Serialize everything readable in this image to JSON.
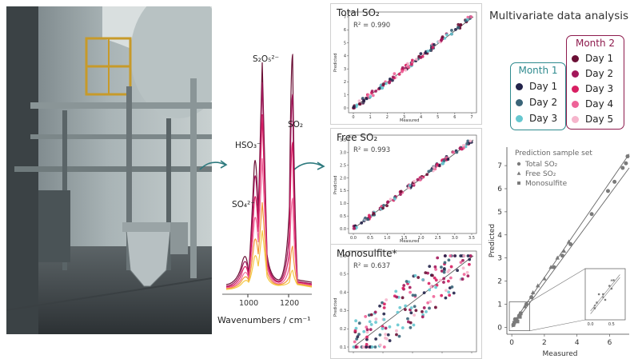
{
  "spectra": {
    "labels": {
      "s2o5": "S₂O₅²⁻",
      "hso3": "HSO₃⁻",
      "so2": "SO₂",
      "so4": "SO₄²⁻"
    },
    "axis_title": "Wavenumbers / cm⁻¹",
    "ticks": [
      "1000",
      "1200"
    ]
  },
  "panels": [
    {
      "title": "Total SO₂",
      "r2": "R² = 0.990",
      "xlabel": "Measured",
      "ylabel": "Predicted",
      "xticks": [
        "0",
        "1",
        "2",
        "3",
        "4",
        "5",
        "6",
        "7"
      ],
      "yticks": [
        "0",
        "1",
        "2",
        "3",
        "4",
        "5",
        "6",
        "7"
      ]
    },
    {
      "title": "Free SO₂",
      "r2": "R² = 0.993",
      "xlabel": "Measured",
      "ylabel": "Predicted",
      "xticks": [
        "0.0",
        "0.5",
        "1.0",
        "1.5",
        "2.0",
        "2.5",
        "3.0",
        "3.5"
      ],
      "yticks": [
        "0.0",
        "0.5",
        "1.0",
        "1.5",
        "2.0",
        "2.5",
        "3.0",
        "3.5"
      ]
    },
    {
      "title": "Monosulfite*",
      "r2": "R² = 0.637",
      "xlabel": "Measured",
      "ylabel": "Predicted",
      "xticks": [
        "0.1",
        "0.2",
        "0.3",
        "0.4",
        "0.5"
      ],
      "yticks": [
        "0.1",
        "0.2",
        "0.3",
        "0.4",
        "0.5",
        "0.6"
      ]
    }
  ],
  "analysis": {
    "heading": "Multivariate data analysis",
    "month1": {
      "title": "Month 1",
      "color": "#2e8a8e",
      "items": [
        {
          "label": "Day 1",
          "color": "#23234a"
        },
        {
          "label": "Day 2",
          "color": "#3a6478"
        },
        {
          "label": "Day 3",
          "color": "#66c7cf"
        }
      ]
    },
    "month2": {
      "title": "Month 2",
      "color": "#8e1b4d",
      "items": [
        {
          "label": "Day 1",
          "color": "#6b0f35"
        },
        {
          "label": "Day 2",
          "color": "#a3175a"
        },
        {
          "label": "Day 3",
          "color": "#d81f62"
        },
        {
          "label": "Day 4",
          "color": "#ee6398"
        },
        {
          "label": "Day 5",
          "color": "#f6b5cc"
        }
      ]
    }
  },
  "chart_data": {
    "type": "scatter",
    "title": "Prediction sample set",
    "xlabel": "Measured",
    "ylabel": "Predicted",
    "xticks": [
      "0",
      "2",
      "4",
      "6"
    ],
    "yticks": [
      "0",
      "1",
      "2",
      "3",
      "4",
      "5",
      "6",
      "7"
    ],
    "inset_xticks": [
      "0.0",
      "0.5"
    ],
    "xlim": [
      -0.3,
      7.2
    ],
    "ylim": [
      -0.3,
      7.8
    ],
    "series": [
      {
        "name": "Total SO₂",
        "marker": "circle",
        "points": [
          [
            0.1,
            0.1
          ],
          [
            0.2,
            0.35
          ],
          [
            0.45,
            0.5
          ],
          [
            0.9,
            1.0
          ],
          [
            1.2,
            1.3
          ],
          [
            2.6,
            2.6
          ],
          [
            3.1,
            3.1
          ],
          [
            3.6,
            3.6
          ],
          [
            4.9,
            4.9
          ],
          [
            5.9,
            5.9
          ],
          [
            6.3,
            6.3
          ],
          [
            6.8,
            6.9
          ],
          [
            7.0,
            7.1
          ],
          [
            7.1,
            7.4
          ]
        ]
      },
      {
        "name": "Free SO₂",
        "marker": "triangle",
        "points": [
          [
            0.1,
            0.15
          ],
          [
            0.3,
            0.3
          ],
          [
            0.5,
            0.6
          ],
          [
            0.8,
            0.9
          ],
          [
            1.3,
            1.5
          ],
          [
            1.6,
            1.8
          ],
          [
            2.0,
            2.1
          ],
          [
            2.4,
            2.6
          ],
          [
            2.8,
            3.0
          ],
          [
            3.2,
            3.3
          ],
          [
            3.5,
            3.7
          ]
        ]
      },
      {
        "name": "Monosulfite",
        "marker": "square",
        "points": [
          [
            0.1,
            0.1
          ],
          [
            0.15,
            0.2
          ],
          [
            0.3,
            0.35
          ],
          [
            0.35,
            0.25
          ],
          [
            0.5,
            0.45
          ],
          [
            0.55,
            0.6
          ]
        ]
      }
    ]
  }
}
